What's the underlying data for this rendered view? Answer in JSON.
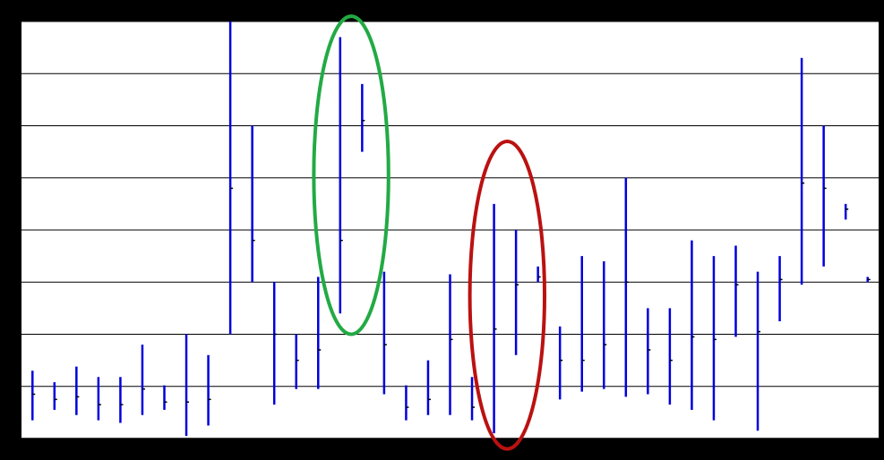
{
  "chart_data": {
    "type": "stock",
    "title": "",
    "xlabel": "",
    "ylabel": "",
    "ylim": [
      0,
      8
    ],
    "grid": true,
    "x": [
      1,
      2,
      3,
      4,
      5,
      6,
      7,
      8,
      9,
      10,
      11,
      12,
      13,
      14,
      15,
      16,
      17,
      18,
      19,
      20,
      21,
      22,
      23,
      24,
      25,
      26,
      27,
      28,
      29,
      30,
      31,
      32,
      33,
      34,
      35,
      36,
      37,
      38,
      39
    ],
    "series": [
      {
        "high": [
          1.3,
          1.08,
          1.38,
          1.18,
          1.18,
          1.8,
          1.02,
          2.0,
          1.6,
          8.0,
          6.0,
          3.0,
          2.0,
          3.1,
          7.7,
          6.8,
          3.2,
          1.02,
          1.5,
          3.15,
          1.18,
          4.5,
          4.0,
          3.3,
          2.15,
          3.5,
          3.4,
          5.0,
          2.5,
          2.5,
          3.8,
          3.5,
          3.7,
          3.2,
          3.5,
          7.3,
          6.0,
          4.5,
          3.1
        ],
        "low": [
          0.35,
          0.55,
          0.45,
          0.35,
          0.3,
          0.45,
          0.55,
          0.05,
          0.25,
          2.0,
          3.0,
          0.65,
          0.95,
          0.95,
          2.4,
          5.5,
          0.85,
          0.35,
          0.45,
          0.45,
          0.35,
          0.1,
          1.6,
          3.0,
          0.75,
          0.9,
          0.95,
          0.8,
          0.85,
          0.65,
          0.55,
          0.35,
          1.95,
          0.15,
          2.25,
          2.95,
          3.3,
          4.2,
          3.0
        ],
        "close": [
          0.85,
          0.75,
          0.8,
          0.65,
          0.65,
          0.95,
          0.7,
          0.7,
          0.75,
          4.8,
          3.8,
          2.0,
          1.5,
          1.7,
          3.8,
          6.1,
          1.8,
          0.6,
          0.75,
          1.9,
          0.6,
          2.1,
          2.95,
          3.1,
          1.5,
          1.5,
          1.8,
          3.0,
          1.7,
          1.5,
          1.95,
          1.9,
          2.95,
          2.05,
          3.05,
          4.9,
          4.8,
          4.4,
          3.05
        ]
      }
    ],
    "annotations": [
      {
        "shape": "ellipse",
        "color": "#22aa44",
        "x_center": 15.5,
        "x_radius": 1.7,
        "y_center": 5.05,
        "y_radius": 3.05
      },
      {
        "shape": "ellipse",
        "color": "#bb1111",
        "x_center": 22.6,
        "x_radius": 1.7,
        "y_center": 2.75,
        "y_radius": 2.95
      }
    ],
    "colors": {
      "bar": "#0000dd",
      "grid": "#000000",
      "plot_bg": "#ffffff",
      "frame": "#000000"
    }
  }
}
